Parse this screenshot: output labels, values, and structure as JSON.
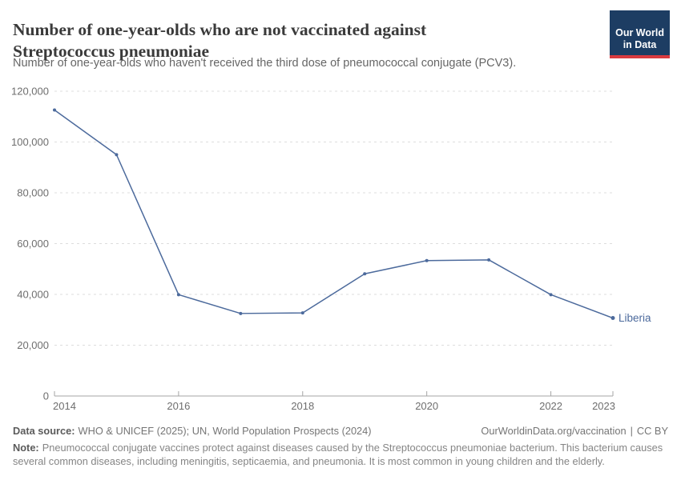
{
  "header": {
    "logo": {
      "text": "Our World\nin Data"
    }
  },
  "chart_data": {
    "type": "line",
    "title": "Number of one-year-olds who are not vaccinated against\nStreptococcus pneumoniae",
    "subtitle": "Number of one-year-olds who haven't received the third dose of pneumococcal conjugate (PCV3).",
    "x": [
      2014,
      2015,
      2016,
      2017,
      2018,
      2019,
      2020,
      2021,
      2022,
      2023
    ],
    "series": [
      {
        "name": "Liberia",
        "color": "#4c6a9c",
        "values": [
          112600,
          95000,
          39900,
          32500,
          32700,
          48100,
          53300,
          53600,
          39900,
          30700
        ]
      }
    ],
    "ylim": [
      0,
      120000
    ],
    "yticks": [
      0,
      20000,
      40000,
      60000,
      80000,
      100000,
      120000
    ],
    "xticks": [
      2014,
      2016,
      2018,
      2020,
      2022,
      2023
    ],
    "grid": "horizontal-dashed",
    "legend": "end-of-line-label"
  },
  "footer": {
    "data_source_label": "Data source:",
    "data_source": "WHO & UNICEF (2025); UN, World Population Prospects (2024)",
    "link": "OurWorldinData.org/vaccination",
    "separator": "|",
    "license": "CC BY",
    "note_label": "Note:",
    "note": "Pneumococcal conjugate vaccines protect against diseases caused by the Streptococcus pneumoniae bacterium. This bacterium causes several common diseases, including meningitis, septicaemia, and pneumonia. It is most common in young children and the elderly."
  },
  "colors": {
    "accent_line": "#4c6a9c",
    "logo_bg": "#1d3d63",
    "logo_bar": "#d93a3f",
    "gridline": "#dddddd",
    "axis": "#a5a5a5",
    "tick_label": "#6e6e6e"
  }
}
